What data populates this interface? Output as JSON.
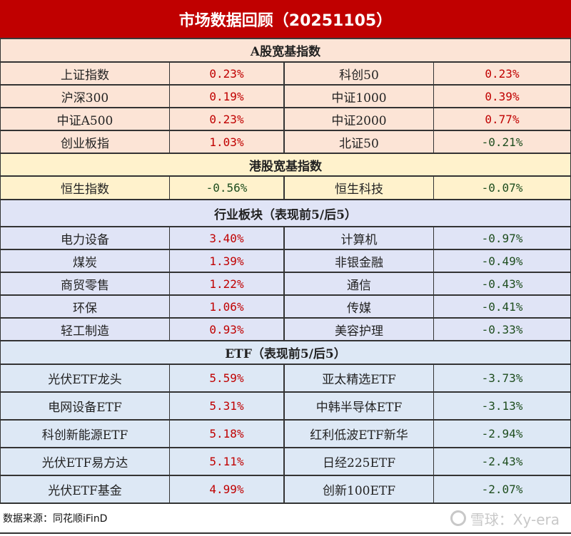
{
  "title": "市场数据回顾（20251105）",
  "colors": {
    "title_bg": "#c00000",
    "positive": "#c00000",
    "negative": "#1e4d1e",
    "a_share_bg": "#fce4d6",
    "hk_bg": "#fff2cc",
    "industry_bg": "#e0e4f6",
    "etf_bg": "#dde8f5"
  },
  "sections": {
    "a_share": {
      "header": "A股宽基指数",
      "rows": [
        {
          "l_name": "上证指数",
          "l_val": "0.23%",
          "r_name": "科创50",
          "r_val": "0.23%"
        },
        {
          "l_name": "沪深300",
          "l_val": "0.19%",
          "r_name": "中证1000",
          "r_val": "0.39%"
        },
        {
          "l_name": "中证A500",
          "l_val": "0.23%",
          "r_name": "中证2000",
          "r_val": "0.77%"
        },
        {
          "l_name": "创业板指",
          "l_val": "1.03%",
          "r_name": "北证50",
          "r_val": "-0.21%"
        }
      ]
    },
    "hk": {
      "header": "港股宽基指数",
      "rows": [
        {
          "l_name": "恒生指数",
          "l_val": "-0.56%",
          "r_name": "恒生科技",
          "r_val": "-0.07%"
        }
      ]
    },
    "industry": {
      "header": "行业板块（表现前5/后5）",
      "rows": [
        {
          "l_name": "电力设备",
          "l_val": "3.40%",
          "r_name": "计算机",
          "r_val": "-0.97%"
        },
        {
          "l_name": "煤炭",
          "l_val": "1.39%",
          "r_name": "非银金融",
          "r_val": "-0.49%"
        },
        {
          "l_name": "商贸零售",
          "l_val": "1.22%",
          "r_name": "通信",
          "r_val": "-0.43%"
        },
        {
          "l_name": "环保",
          "l_val": "1.06%",
          "r_name": "传媒",
          "r_val": "-0.41%"
        },
        {
          "l_name": "轻工制造",
          "l_val": "0.93%",
          "r_name": "美容护理",
          "r_val": "-0.33%"
        }
      ]
    },
    "etf": {
      "header": "ETF（表现前5/后5）",
      "rows": [
        {
          "l_name": "光伏ETF龙头",
          "l_val": "5.59%",
          "r_name": "亚太精选ETF",
          "r_val": "-3.73%"
        },
        {
          "l_name": "电网设备ETF",
          "l_val": "5.31%",
          "r_name": "中韩半导体ETF",
          "r_val": "-3.13%"
        },
        {
          "l_name": "科创新能源ETF",
          "l_val": "5.18%",
          "r_name": "红利低波ETF新华",
          "r_val": "-2.94%"
        },
        {
          "l_name": "光伏ETF易方达",
          "l_val": "5.11%",
          "r_name": "日经225ETF",
          "r_val": "-2.43%"
        },
        {
          "l_name": "光伏ETF基金",
          "l_val": "4.99%",
          "r_name": "创新100ETF",
          "r_val": "-2.07%"
        }
      ]
    }
  },
  "footer": {
    "source": "数据来源：同花顺iFinD",
    "watermark": "雪球：Xy-era",
    "watermark_icon": "xueqiu-logo-icon"
  }
}
